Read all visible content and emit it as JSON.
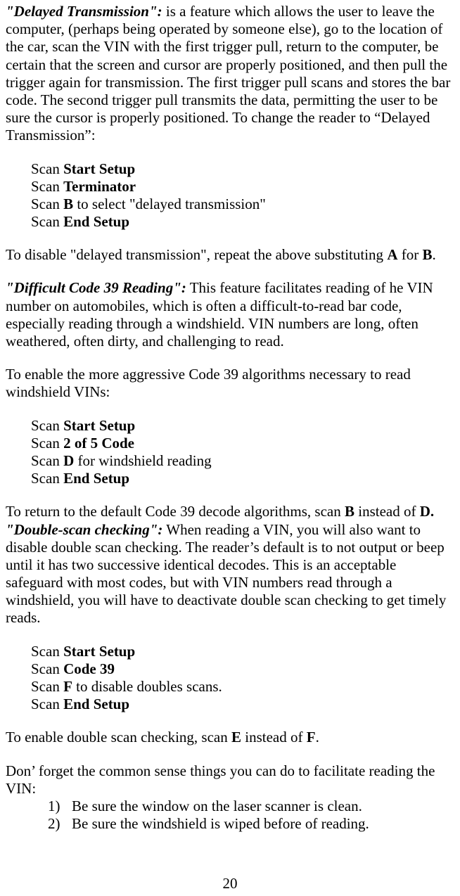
{
  "sec1": {
    "title": "\"Delayed Transmission\":",
    "body": " is a feature which allows the user to leave the computer, (perhaps being operated by someone else), go to the location of the car, scan the VIN with the first trigger pull, return to the computer, be certain that the screen and cursor are properly positioned, and then pull the trigger again for transmission. The first trigger pull scans and stores the bar code. The second trigger pull transmits the data, permitting the user to be sure the cursor is properly positioned. To change the reader to “Delayed Transmission”:"
  },
  "steps1": {
    "s1p": "Scan ",
    "s1b": "Start Setup",
    "s2p": "Scan ",
    "s2b": "Terminator",
    "s3p": "Scan ",
    "s3b": "B",
    "s3t": " to select \"delayed transmission\"",
    "s4p": "Scan ",
    "s4b": "End Setup"
  },
  "disable1": {
    "pre": " To disable \"delayed transmission\", repeat the above substituting ",
    "a": "A",
    "mid": " for ",
    "b": "B",
    "end": "."
  },
  "sec2": {
    "title": "\"Difficult Code 39 Reading\":",
    "body": " This feature facilitates reading of he VIN number on automobiles, which is often a difficult-to-read bar code, especially reading through a windshield.  VIN numbers are long, often weathered, often dirty, and challenging to read."
  },
  "enable2": " To enable the more aggressive Code 39 algorithms necessary to read windshield VINs:",
  "steps2": {
    "s1p": "Scan ",
    "s1b": "Start Setup",
    "s2p": "Scan ",
    "s2b": "2 of 5 Code",
    "s3p": "Scan ",
    "s3b": "D",
    "s3t": " for windshield reading",
    "s4p": "Scan ",
    "s4b": "End Setup"
  },
  "ret2": {
    "pre": "To return to the default Code 39 decode algorithms, scan ",
    "b1": "B",
    "mid": " instead of ",
    "b2": "D.",
    "end": ""
  },
  "sec3": {
    "title": "\"Double-scan checking\":",
    "body": " When reading a VIN, you will also want to disable double scan checking. The reader’s default is to not output or beep until it has two successive identical decodes. This is an acceptable safeguard with most codes, but with VIN numbers read through a windshield, you will have to deactivate double scan checking to get timely reads."
  },
  "steps3": {
    "s1p": "Scan ",
    "s1b": "Start Setup",
    "s2p": "Scan ",
    "s2b": "Code 39",
    "s3p": "Scan ",
    "s3b": "F",
    "s3t": " to disable doubles scans.",
    "s4p": "Scan ",
    "s4b": "End Setup"
  },
  "enable3": {
    "pre": "To enable double scan checking, scan ",
    "b1": "E",
    "mid": " instead of ",
    "b2": "F",
    "end": "."
  },
  "tips": {
    "intro": "Don’ forget the common sense things you can do to facilitate reading the VIN:",
    "n1": "1)",
    "t1": "Be sure the window on the laser scanner is clean.",
    "n2": "2)",
    "t2": "Be sure the windshield is wiped before of reading."
  },
  "page": "20"
}
